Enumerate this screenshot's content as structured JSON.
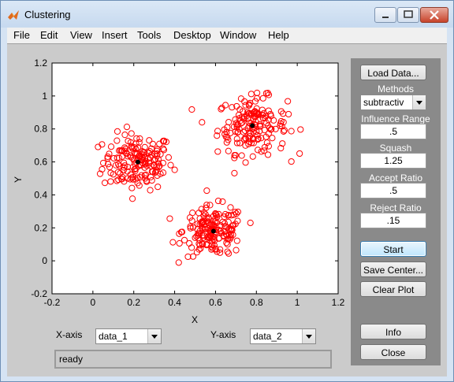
{
  "window": {
    "title": "Clustering",
    "controls": [
      "minimize-icon",
      "maximize-icon",
      "close-icon"
    ]
  },
  "menubar": {
    "items": [
      "File",
      "Edit",
      "View",
      "Insert",
      "Tools",
      "Desktop",
      "Window",
      "Help"
    ]
  },
  "plot": {
    "xlabel": "X",
    "ylabel": "Y",
    "xticks": [
      "-0.2",
      "0",
      "0.2",
      "0.4",
      "0.6",
      "0.8",
      "1",
      "1.2"
    ],
    "yticks": [
      "-0.2",
      "0",
      "0.2",
      "0.4",
      "0.6",
      "0.8",
      "1",
      "1.2"
    ],
    "xlim": [
      -0.2,
      1.2
    ],
    "ylim": [
      -0.2,
      1.2
    ],
    "point_color": "#ff0000",
    "center_color": "#000000"
  },
  "chart_data": {
    "type": "scatter",
    "xlabel": "X",
    "ylabel": "Y",
    "xlim": [
      -0.2,
      1.2
    ],
    "ylim": [
      -0.2,
      1.2
    ],
    "grid": false,
    "clusters": [
      {
        "center": [
          0.22,
          0.6
        ],
        "spread": 0.085,
        "count": 170
      },
      {
        "center": [
          0.78,
          0.82
        ],
        "spread": 0.085,
        "count": 170
      },
      {
        "center": [
          0.59,
          0.18
        ],
        "spread": 0.075,
        "count": 170
      }
    ],
    "centers": [
      [
        0.22,
        0.6
      ],
      [
        0.78,
        0.82
      ],
      [
        0.59,
        0.18
      ]
    ]
  },
  "axis_select": {
    "x_label": "X-axis",
    "x_value": "data_1",
    "y_label": "Y-axis",
    "y_value": "data_2"
  },
  "status": "ready",
  "panel": {
    "load_data": "Load Data...",
    "methods_label": "Methods",
    "method_value": "subtractiv",
    "influence_label": "Influence Range",
    "influence_value": ".5",
    "squash_label": "Squash",
    "squash_value": "1.25",
    "accept_label": "Accept Ratio",
    "accept_value": ".5",
    "reject_label": "Reject Ratio",
    "reject_value": ".15",
    "start": "Start",
    "save_center": "Save Center...",
    "clear_plot": "Clear Plot",
    "info": "Info",
    "close": "Close"
  }
}
